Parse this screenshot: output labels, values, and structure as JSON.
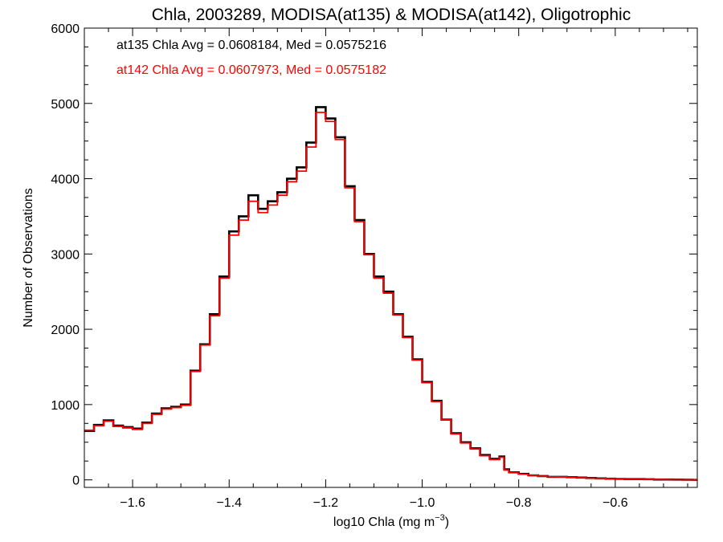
{
  "chart_data": {
    "type": "line",
    "title": "Chla, 2003289, MODISA(at135) & MODISA(at142), Oligotrophic",
    "xlabel": "log10 Chla (mg m",
    "xlabel_sup": "−3",
    "xlabel_end": ")",
    "ylabel": "Number of Observations",
    "xlim": [
      -1.7,
      -0.43
    ],
    "ylim": [
      -100,
      6000
    ],
    "x_ticks": [
      -1.6,
      -1.4,
      -1.2,
      -1.0,
      -0.8,
      -0.6
    ],
    "x_tick_labels": [
      "−1.6",
      "−1.4",
      "−1.2",
      "−1.0",
      "−0.8",
      "−0.6"
    ],
    "y_ticks": [
      0,
      1000,
      2000,
      3000,
      4000,
      5000,
      6000
    ],
    "y_tick_labels": [
      "0",
      "1000",
      "2000",
      "3000",
      "4000",
      "5000",
      "6000"
    ],
    "grid": false,
    "annotations": [
      {
        "text": "at135 Chla Avg = 0.0608184, Med = 0.0575216",
        "color": "#000000"
      },
      {
        "text": "at142 Chla Avg = 0.0607973, Med = 0.0575182",
        "color": "#ff0000"
      }
    ],
    "series": [
      {
        "color": "#000000",
        "x": [
          -1.7,
          -1.68,
          -1.66,
          -1.64,
          -1.62,
          -1.6,
          -1.58,
          -1.56,
          -1.54,
          -1.52,
          -1.5,
          -1.48,
          -1.46,
          -1.44,
          -1.42,
          -1.4,
          -1.38,
          -1.36,
          -1.34,
          -1.32,
          -1.3,
          -1.28,
          -1.26,
          -1.24,
          -1.22,
          -1.2,
          -1.18,
          -1.16,
          -1.14,
          -1.12,
          -1.1,
          -1.08,
          -1.06,
          -1.04,
          -1.02,
          -1.0,
          -0.98,
          -0.96,
          -0.94,
          -0.92,
          -0.9,
          -0.88,
          -0.86,
          -0.84,
          -0.83,
          -0.82,
          -0.8,
          -0.78,
          -0.76,
          -0.74,
          -0.72,
          -0.7,
          -0.68,
          -0.66,
          -0.64,
          -0.62,
          -0.6,
          -0.58,
          -0.56,
          -0.54,
          -0.52,
          -0.5,
          -0.48,
          -0.46,
          -0.44
        ],
        "y": [
          650,
          730,
          790,
          720,
          700,
          680,
          760,
          880,
          950,
          970,
          1000,
          1450,
          1800,
          2200,
          2700,
          3300,
          3500,
          3780,
          3600,
          3700,
          3820,
          4000,
          4150,
          4480,
          4950,
          4800,
          4550,
          3900,
          3450,
          3000,
          2700,
          2500,
          2200,
          1900,
          1600,
          1300,
          1050,
          800,
          620,
          500,
          420,
          330,
          280,
          310,
          140,
          100,
          80,
          60,
          50,
          40,
          40,
          35,
          30,
          25,
          20,
          15,
          12,
          10,
          10,
          8,
          5,
          5,
          3,
          2,
          0
        ]
      },
      {
        "color": "#ff0000",
        "x": [
          -1.7,
          -1.68,
          -1.66,
          -1.64,
          -1.62,
          -1.6,
          -1.58,
          -1.56,
          -1.54,
          -1.52,
          -1.5,
          -1.48,
          -1.46,
          -1.44,
          -1.42,
          -1.4,
          -1.38,
          -1.36,
          -1.34,
          -1.32,
          -1.3,
          -1.28,
          -1.26,
          -1.24,
          -1.22,
          -1.2,
          -1.18,
          -1.16,
          -1.14,
          -1.12,
          -1.1,
          -1.08,
          -1.06,
          -1.04,
          -1.02,
          -1.0,
          -0.98,
          -0.96,
          -0.94,
          -0.92,
          -0.9,
          -0.88,
          -0.86,
          -0.84,
          -0.83,
          -0.82,
          -0.8,
          -0.78,
          -0.76,
          -0.74,
          -0.72,
          -0.7,
          -0.68,
          -0.66,
          -0.64,
          -0.62,
          -0.6,
          -0.58,
          -0.56,
          -0.54,
          -0.52,
          -0.5,
          -0.48,
          -0.46,
          -0.44
        ],
        "y": [
          660,
          720,
          780,
          710,
          690,
          670,
          750,
          870,
          940,
          960,
          990,
          1440,
          1790,
          2180,
          2680,
          3250,
          3450,
          3700,
          3550,
          3650,
          3780,
          3960,
          4100,
          4420,
          4880,
          4760,
          4520,
          3880,
          3430,
          2990,
          2680,
          2480,
          2190,
          1890,
          1590,
          1290,
          1040,
          800,
          610,
          490,
          410,
          320,
          270,
          300,
          130,
          95,
          75,
          60,
          48,
          40,
          38,
          33,
          28,
          23,
          18,
          14,
          11,
          9,
          9,
          7,
          5,
          4,
          3,
          2,
          0
        ]
      }
    ]
  }
}
